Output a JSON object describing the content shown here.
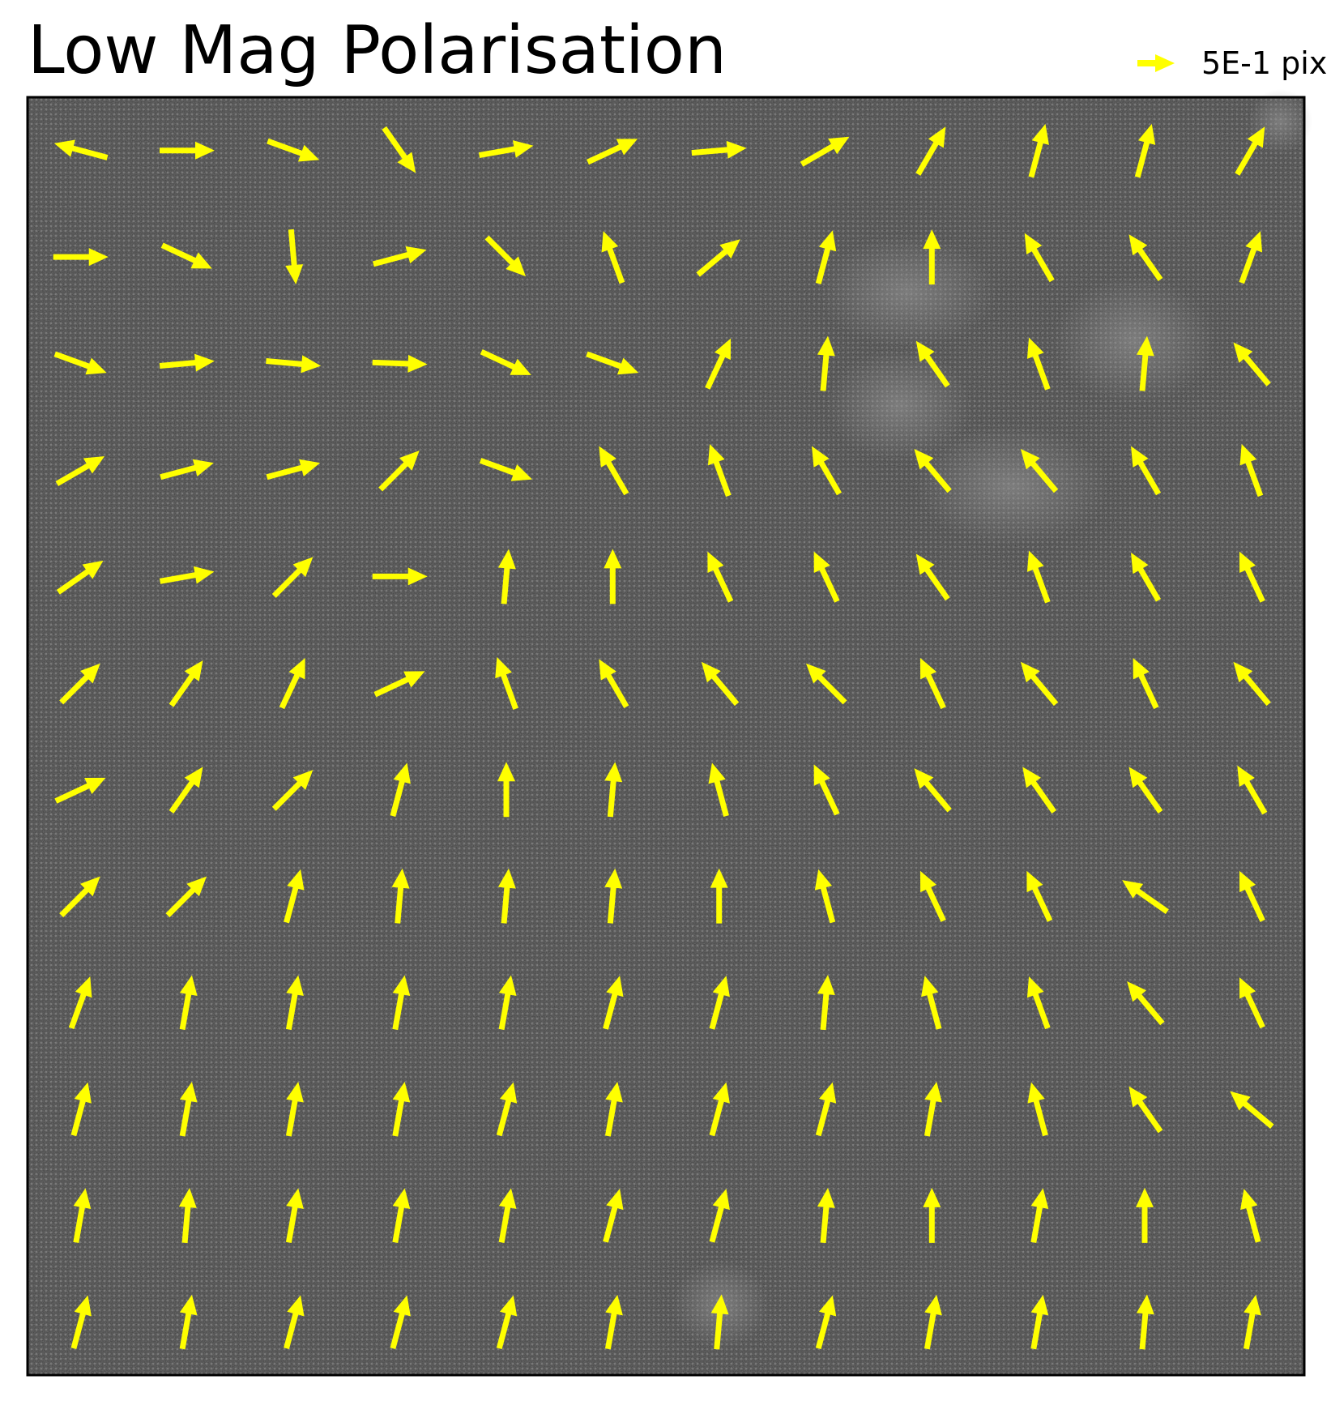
{
  "title": "Low Mag Polarisation",
  "legend": {
    "label": "5E-1 pix",
    "arrow_color": "#ffff00"
  },
  "colors": {
    "arrow": "#ffff00",
    "image_background": "#404040",
    "frame": "#000000"
  },
  "chart_data": {
    "type": "quiver",
    "title": "Low Mag Polarisation",
    "background": "grayscale HAADF lattice image",
    "grid": false,
    "axes_ticks": false,
    "legend_placement": "top-right",
    "key_label": "5E-1 pix",
    "key_magnitude": 0.5,
    "rows": 12,
    "cols": 12,
    "angles_deg_rows_top_to_bottom": [
      [
        165,
        0,
        340,
        305,
        10,
        25,
        5,
        30,
        60,
        75,
        75,
        60
      ],
      [
        0,
        335,
        275,
        15,
        315,
        110,
        40,
        75,
        90,
        120,
        125,
        70
      ],
      [
        340,
        5,
        355,
        358,
        335,
        340,
        65,
        85,
        125,
        110,
        85,
        130
      ],
      [
        30,
        15,
        15,
        45,
        340,
        120,
        110,
        120,
        130,
        130,
        120,
        110
      ],
      [
        35,
        10,
        45,
        0,
        85,
        90,
        115,
        115,
        125,
        110,
        120,
        115
      ],
      [
        45,
        55,
        65,
        25,
        110,
        120,
        130,
        135,
        115,
        130,
        115,
        130
      ],
      [
        25,
        55,
        45,
        75,
        90,
        85,
        105,
        115,
        130,
        125,
        125,
        120
      ],
      [
        45,
        45,
        75,
        85,
        85,
        85,
        90,
        105,
        115,
        115,
        145,
        115
      ],
      [
        70,
        80,
        80,
        80,
        80,
        75,
        75,
        85,
        105,
        110,
        130,
        115
      ],
      [
        75,
        80,
        80,
        80,
        75,
        80,
        75,
        75,
        80,
        105,
        125,
        140
      ],
      [
        80,
        85,
        80,
        80,
        80,
        75,
        75,
        85,
        90,
        80,
        90,
        105
      ],
      [
        75,
        80,
        75,
        75,
        75,
        80,
        85,
        75,
        80,
        80,
        85,
        80
      ]
    ]
  }
}
